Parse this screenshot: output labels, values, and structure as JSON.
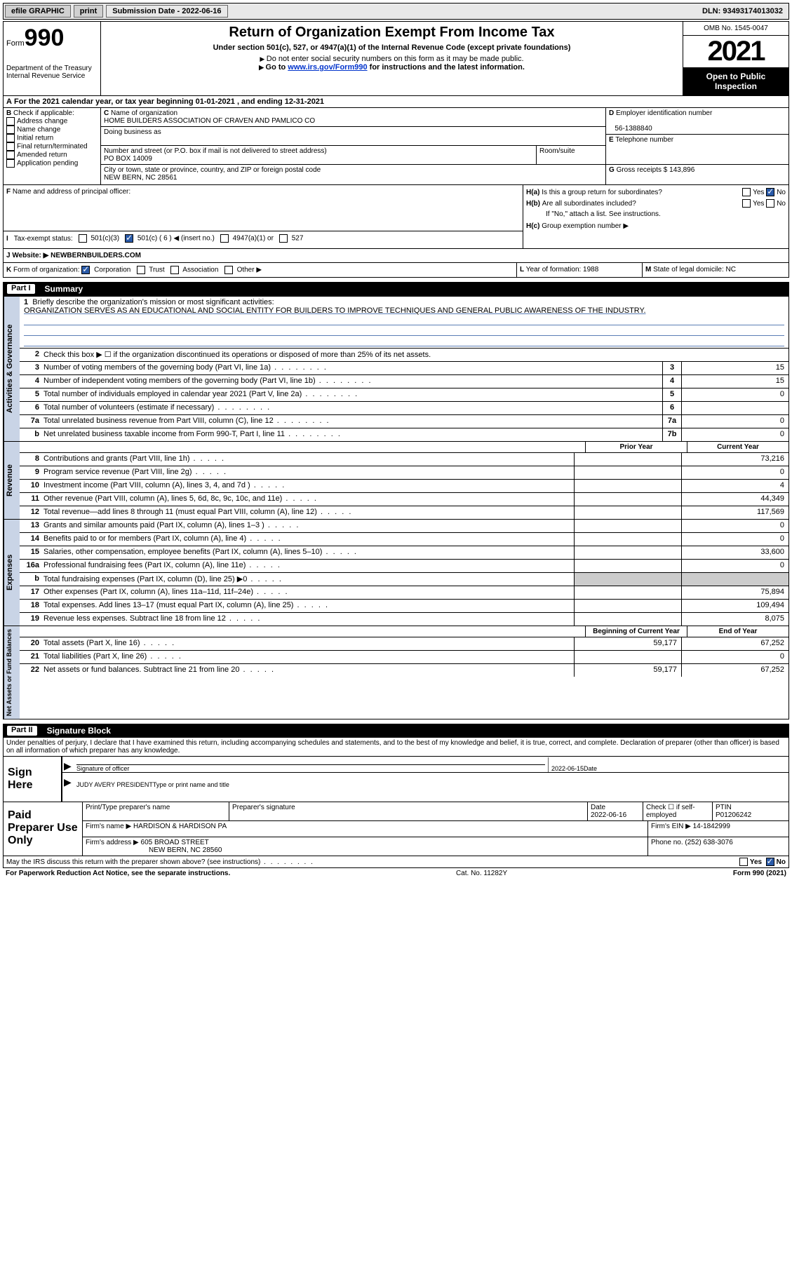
{
  "top": {
    "efile": "efile GRAPHIC",
    "print": "print",
    "sub_label": "Submission Date - 2022-06-16",
    "dln": "DLN: 93493174013032"
  },
  "header": {
    "form": "Form",
    "form_no": "990",
    "title": "Return of Organization Exempt From Income Tax",
    "subtitle": "Under section 501(c), 527, or 4947(a)(1) of the Internal Revenue Code (except private foundations)",
    "note1": "Do not enter social security numbers on this form as it may be made public.",
    "note2_pre": "Go to ",
    "note2_link": "www.irs.gov/Form990",
    "note2_post": " for instructions and the latest information.",
    "dept": "Department of the Treasury",
    "irs": "Internal Revenue Service",
    "omb": "OMB No. 1545-0047",
    "year": "2021",
    "public": "Open to Public Inspection"
  },
  "rowA": "For the 2021 calendar year, or tax year beginning 01-01-2021    , and ending 12-31-2021",
  "checkB": {
    "label": "Check if applicable:",
    "addr": "Address change",
    "name": "Name change",
    "init": "Initial return",
    "final": "Final return/terminated",
    "amend": "Amended return",
    "app": "Application pending"
  },
  "colC": {
    "name_lbl": "Name of organization",
    "name": "HOME BUILDERS ASSOCIATION OF CRAVEN AND PAMLICO CO",
    "dba": "Doing business as",
    "street_lbl": "Number and street (or P.O. box if mail is not delivered to street address)",
    "street": "PO BOX 14009",
    "room_lbl": "Room/suite",
    "city_lbl": "City or town, state or province, country, and ZIP or foreign postal code",
    "city": "NEW BERN, NC  28561"
  },
  "colD": {
    "d_lbl": "Employer identification number",
    "d_val": "56-1388840",
    "e_lbl": "Telephone number",
    "g_lbl": "Gross receipts $",
    "g_val": "143,896"
  },
  "rowF": {
    "f_lbl": "Name and address of principal officer:",
    "ha": "Is this a group return for subordinates?",
    "hb": "Are all subordinates included?",
    "hb_note": "If \"No,\" attach a list. See instructions.",
    "hc_lbl": "Group exemption number ▶",
    "yes": "Yes",
    "no": "No"
  },
  "rowI": {
    "lbl": "Tax-exempt status:",
    "a": "501(c)(3)",
    "b": "501(c) ( 6 ) ◀ (insert no.)",
    "c": "4947(a)(1) or",
    "d": "527"
  },
  "rowJ": {
    "lbl": "Website: ▶",
    "val": " NEWBERNBUILDERS.COM"
  },
  "rowK": {
    "lbl": "Form of organization:",
    "corp": "Corporation",
    "trust": "Trust",
    "assoc": "Association",
    "other": "Other ▶"
  },
  "rowL": "Year of formation: 1988",
  "rowM": "State of legal domicile: NC",
  "part1": {
    "pn": "Part I",
    "title": "Summary"
  },
  "mission": {
    "num": "1",
    "lbl": "Briefly describe the organization's mission or most significant activities:",
    "text": "ORGANIZATION SERVES AS AN EDUCATIONAL AND SOCIAL ENTITY FOR BUILDERS TO IMPROVE TECHNIQUES AND GENERAL PUBLIC AWARENESS OF THE INDUSTRY."
  },
  "lines_gov": [
    {
      "n": "2",
      "d": "Check this box ▶ ☐  if the organization discontinued its operations or disposed of more than 25% of its net assets.",
      "box": "",
      "v": ""
    },
    {
      "n": "3",
      "d": "Number of voting members of the governing body (Part VI, line 1a)",
      "box": "3",
      "v": "15"
    },
    {
      "n": "4",
      "d": "Number of independent voting members of the governing body (Part VI, line 1b)",
      "box": "4",
      "v": "15"
    },
    {
      "n": "5",
      "d": "Total number of individuals employed in calendar year 2021 (Part V, line 2a)",
      "box": "5",
      "v": "0"
    },
    {
      "n": "6",
      "d": "Total number of volunteers (estimate if necessary)",
      "box": "6",
      "v": ""
    },
    {
      "n": "7a",
      "d": "Total unrelated business revenue from Part VIII, column (C), line 12",
      "box": "7a",
      "v": "0"
    },
    {
      "n": "b",
      "d": "Net unrelated business taxable income from Form 990-T, Part I, line 11",
      "box": "7b",
      "v": "0"
    }
  ],
  "twocol": {
    "prior": "Prior Year",
    "curr": "Current Year"
  },
  "lines_rev": [
    {
      "n": "8",
      "d": "Contributions and grants (Part VIII, line 1h)",
      "p": "",
      "c": "73,216"
    },
    {
      "n": "9",
      "d": "Program service revenue (Part VIII, line 2g)",
      "p": "",
      "c": "0"
    },
    {
      "n": "10",
      "d": "Investment income (Part VIII, column (A), lines 3, 4, and 7d )",
      "p": "",
      "c": "4"
    },
    {
      "n": "11",
      "d": "Other revenue (Part VIII, column (A), lines 5, 6d, 8c, 9c, 10c, and 11e)",
      "p": "",
      "c": "44,349"
    },
    {
      "n": "12",
      "d": "Total revenue—add lines 8 through 11 (must equal Part VIII, column (A), line 12)",
      "p": "",
      "c": "117,569"
    }
  ],
  "lines_exp": [
    {
      "n": "13",
      "d": "Grants and similar amounts paid (Part IX, column (A), lines 1–3 )",
      "p": "",
      "c": "0"
    },
    {
      "n": "14",
      "d": "Benefits paid to or for members (Part IX, column (A), line 4)",
      "p": "",
      "c": "0"
    },
    {
      "n": "15",
      "d": "Salaries, other compensation, employee benefits (Part IX, column (A), lines 5–10)",
      "p": "",
      "c": "33,600"
    },
    {
      "n": "16a",
      "d": "Professional fundraising fees (Part IX, column (A), line 11e)",
      "p": "",
      "c": "0"
    },
    {
      "n": "b",
      "d": "Total fundraising expenses (Part IX, column (D), line 25) ▶0",
      "p": "grey",
      "c": "grey"
    },
    {
      "n": "17",
      "d": "Other expenses (Part IX, column (A), lines 11a–11d, 11f–24e)",
      "p": "",
      "c": "75,894"
    },
    {
      "n": "18",
      "d": "Total expenses. Add lines 13–17 (must equal Part IX, column (A), line 25)",
      "p": "",
      "c": "109,494"
    },
    {
      "n": "19",
      "d": "Revenue less expenses. Subtract line 18 from line 12",
      "p": "",
      "c": "8,075"
    }
  ],
  "twocol2": {
    "beg": "Beginning of Current Year",
    "end": "End of Year"
  },
  "lines_net": [
    {
      "n": "20",
      "d": "Total assets (Part X, line 16)",
      "p": "59,177",
      "c": "67,252"
    },
    {
      "n": "21",
      "d": "Total liabilities (Part X, line 26)",
      "p": "",
      "c": "0"
    },
    {
      "n": "22",
      "d": "Net assets or fund balances. Subtract line 21 from line 20",
      "p": "59,177",
      "c": "67,252"
    }
  ],
  "vert": {
    "gov": "Activities & Governance",
    "rev": "Revenue",
    "exp": "Expenses",
    "net": "Net Assets or Fund Balances"
  },
  "part2": {
    "pn": "Part II",
    "title": "Signature Block"
  },
  "sig_text": "Under penalties of perjury, I declare that I have examined this return, including accompanying schedules and statements, and to the best of my knowledge and belief, it is true, correct, and complete. Declaration of preparer (other than officer) is based on all information of which preparer has any knowledge.",
  "sign": {
    "here": "Sign Here",
    "sig_officer": "Signature of officer",
    "date_val": "2022-06-15",
    "date": "Date",
    "name": "JUDY AVERY  PRESIDENT",
    "name_lbl": "Type or print name and title"
  },
  "paid": {
    "label": "Paid Preparer Use Only",
    "print_lbl": "Print/Type preparer's name",
    "sig_lbl": "Preparer's signature",
    "date_lbl": "Date",
    "date_val": "2022-06-16",
    "check_lbl": "Check ☐ if self-employed",
    "ptin_lbl": "PTIN",
    "ptin": "P01206242",
    "firm_name_lbl": "Firm's name    ▶",
    "firm_name": "HARDISON & HARDISON PA",
    "firm_ein_lbl": "Firm's EIN ▶",
    "firm_ein": "14-1842999",
    "firm_addr_lbl": "Firm's address ▶",
    "firm_addr": "605 BROAD STREET",
    "firm_city": "NEW BERN, NC  28560",
    "phone_lbl": "Phone no.",
    "phone": "(252) 638-3076"
  },
  "discuss": "May the IRS discuss this return with the preparer shown above? (see instructions)",
  "footer": {
    "left": "For Paperwork Reduction Act Notice, see the separate instructions.",
    "mid": "Cat. No. 11282Y",
    "right": "Form 990 (2021)"
  },
  "labels": {
    "A": "A",
    "B": "B",
    "C": "C",
    "D": "D",
    "E": "E",
    "F": "F",
    "G": "G",
    "H_a": "H(a)",
    "H_b": "H(b)",
    "H_c": "H(c)",
    "I": "I",
    "J": "J",
    "K": "K",
    "L": "L",
    "M": "M"
  }
}
